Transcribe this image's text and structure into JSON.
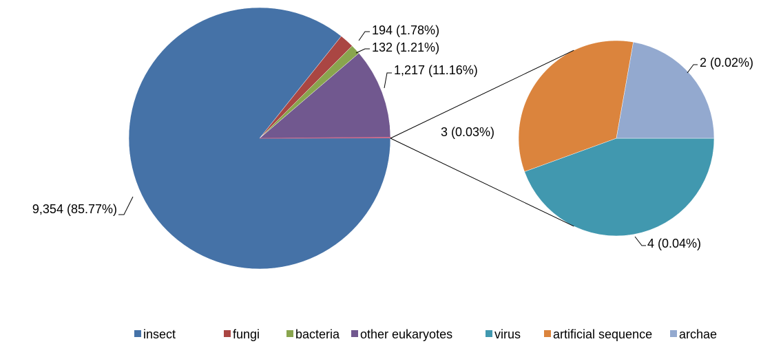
{
  "chart_data": {
    "type": "pie-of-pie",
    "categories": [
      "insect",
      "fungi",
      "bacteria",
      "other eukaryotes",
      "virus",
      "artificial sequence",
      "archae"
    ],
    "values": [
      9354,
      194,
      132,
      1217,
      4,
      3,
      2
    ],
    "value_labels": [
      "9,354 (85.77%)",
      "194 (1.78%)",
      "132 (1.21%)",
      "1,217 (11.16%)",
      "4 (0.04%)",
      "3 (0.03%)",
      "2 (0.02%)"
    ],
    "colors": [
      "#4572a7",
      "#aa4643",
      "#89a54e",
      "#71588f",
      "#4198af",
      "#db843d",
      "#93a9cf"
    ],
    "legend": "bottom"
  }
}
